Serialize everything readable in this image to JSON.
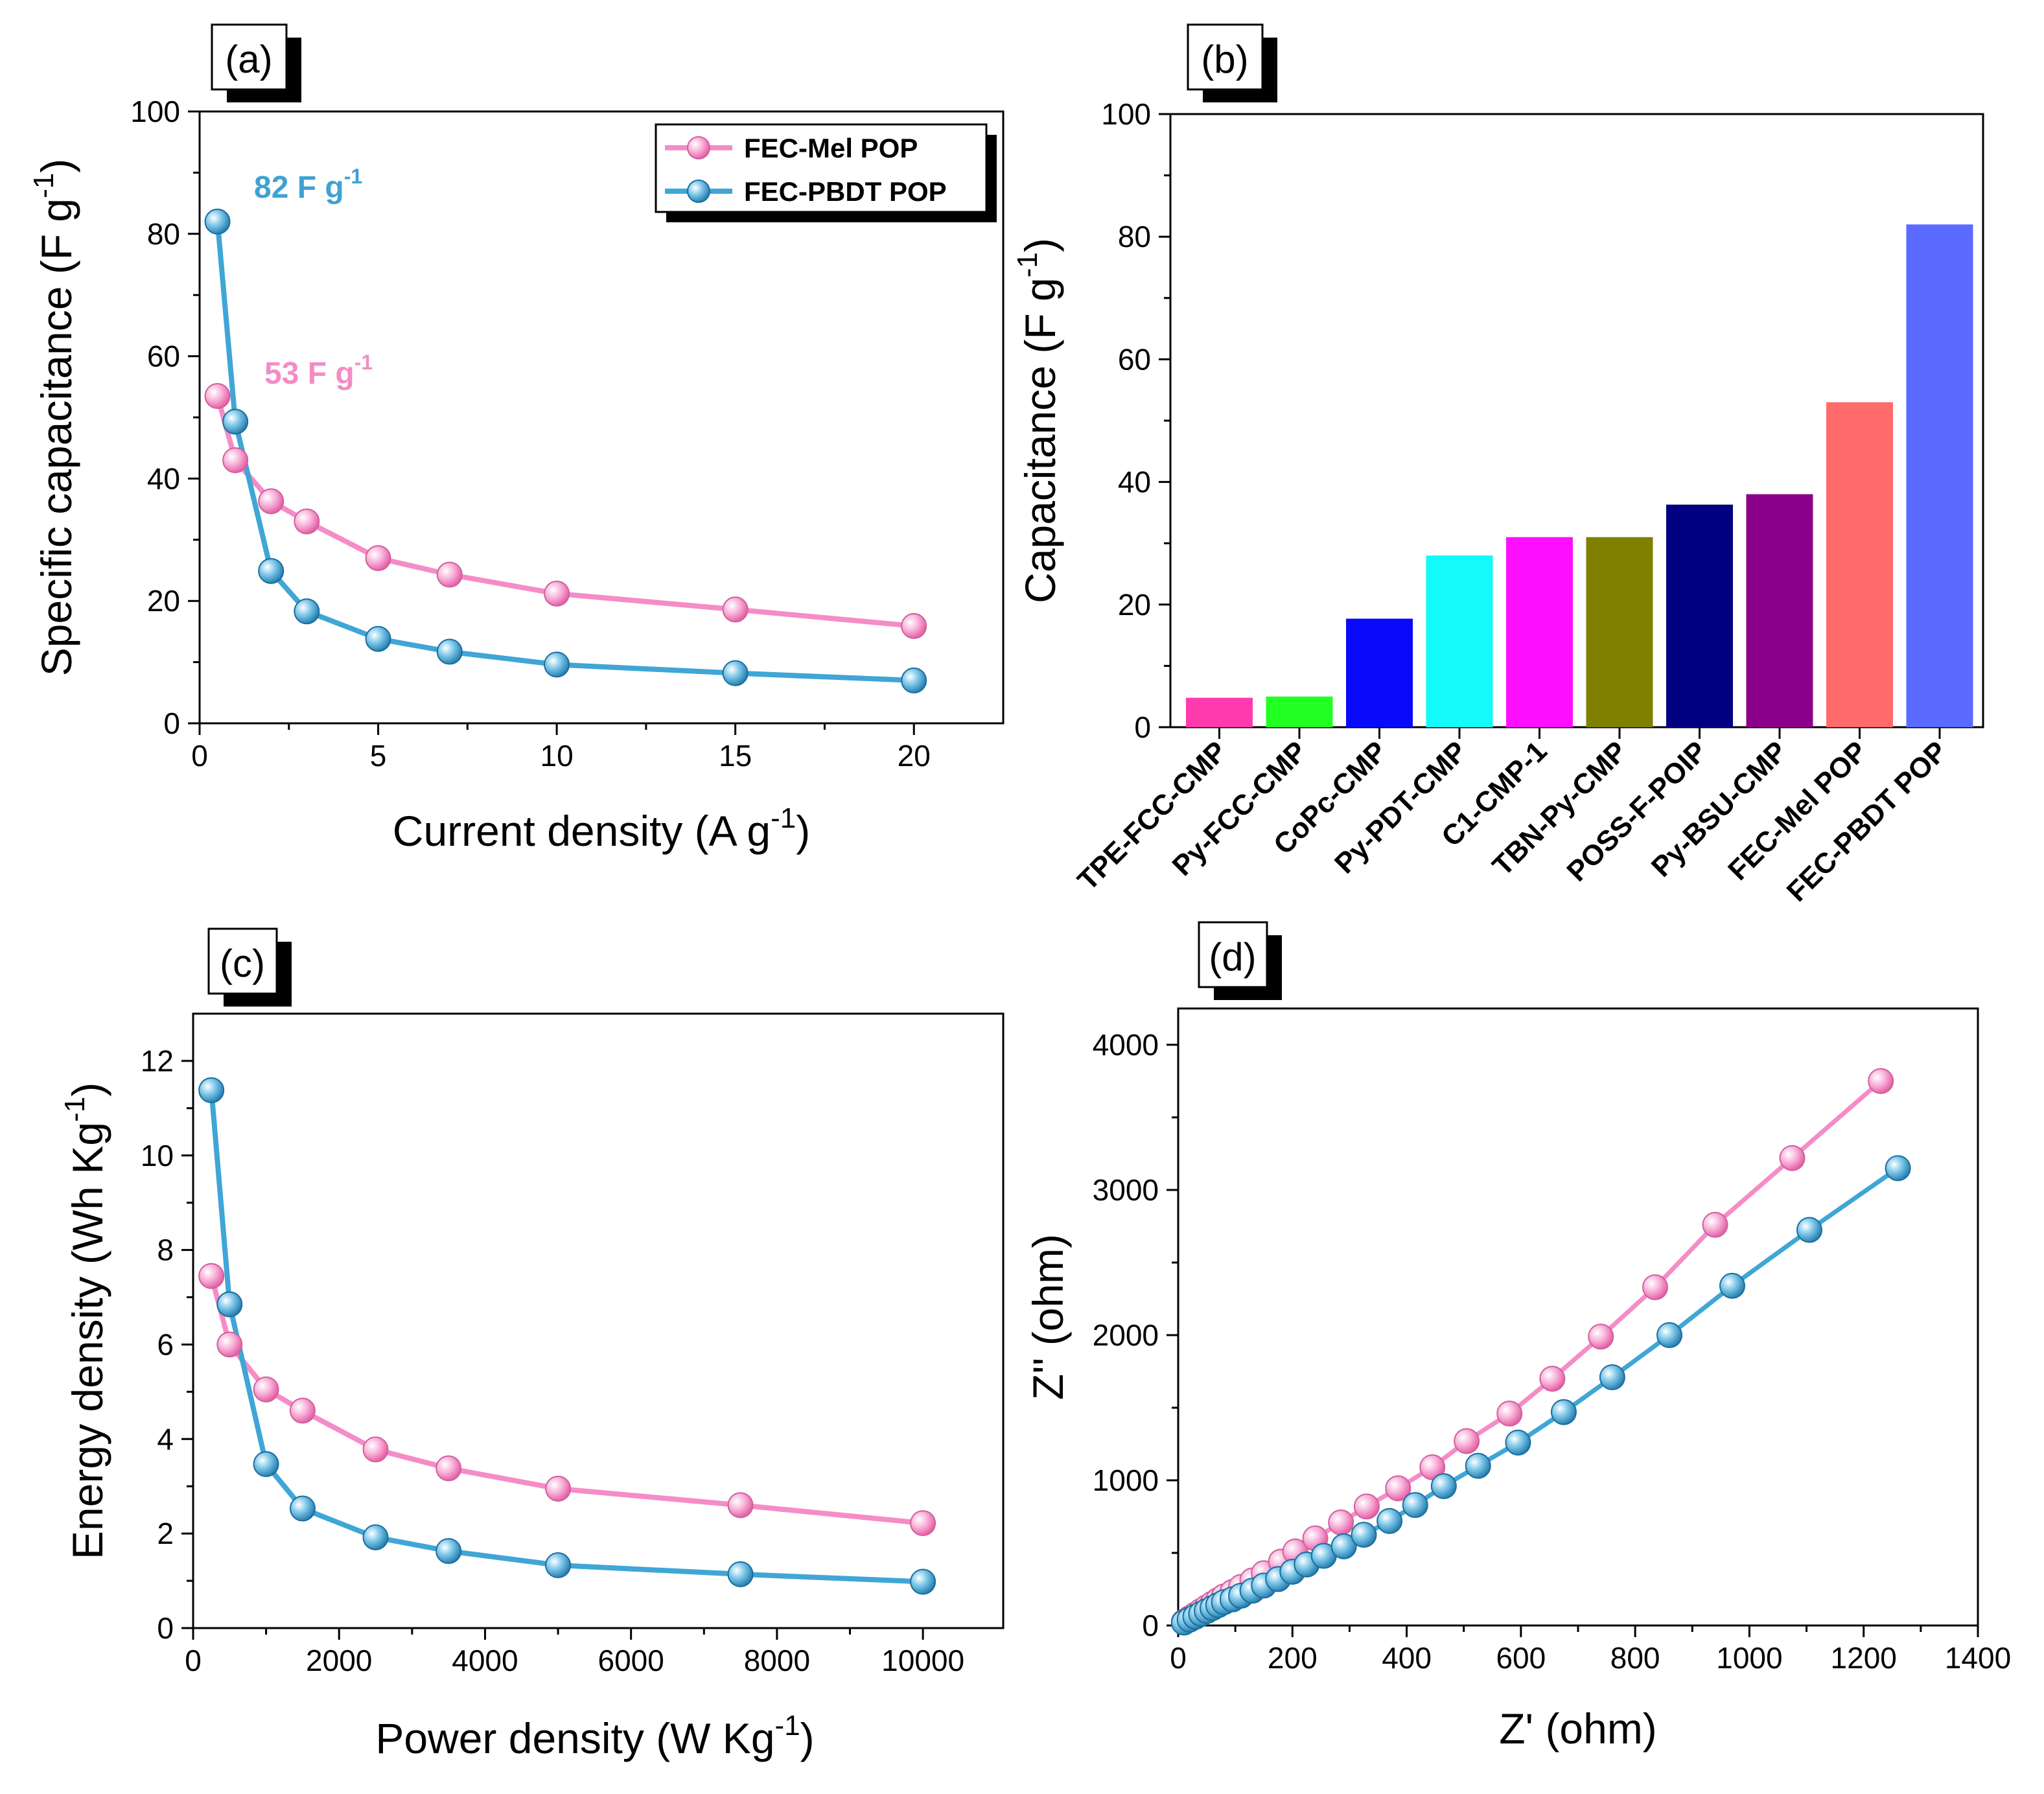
{
  "colors": {
    "pink": "#F58CC8",
    "blue": "#3FA6D6",
    "annot_pink": "#F38CC6",
    "annot_blue": "#3FA2D2"
  },
  "chart_data": [
    {
      "id": "a",
      "panel_label": "(a)",
      "type": "line",
      "xlabel_base": "Current density (A g",
      "xlabel_sup": "-1",
      "xlabel_end": ")",
      "ylabel_base": "Specific capacitance (F g",
      "ylabel_sup": "-1",
      "ylabel_end": ")",
      "xlim": [
        0,
        22.5
      ],
      "ylim": [
        0,
        100
      ],
      "xticks": [
        0,
        5,
        10,
        15,
        20
      ],
      "yticks": [
        0,
        20,
        40,
        60,
        80,
        100
      ],
      "series": [
        {
          "name": "FEC-Mel POP",
          "color": "#F58CC8",
          "x": [
            0.5,
            1,
            2,
            3,
            5,
            7,
            10,
            15,
            20
          ],
          "y": [
            53.5,
            43,
            36.3,
            33,
            27,
            24.3,
            21.2,
            18.6,
            15.9
          ]
        },
        {
          "name": "FEC-PBDT POP",
          "color": "#3FA6D6",
          "x": [
            0.5,
            1,
            2,
            3,
            5,
            7,
            10,
            15,
            20
          ],
          "y": [
            82,
            49.3,
            24.9,
            18.3,
            13.8,
            11.7,
            9.6,
            8.2,
            7
          ]
        }
      ],
      "legend": [
        "FEC-Mel POP",
        "FEC-PBDT POP"
      ],
      "annotations": [
        {
          "base": "82 F g",
          "sup": "-1",
          "color": "#3FA2D2"
        },
        {
          "base": "53 F g",
          "sup": "-1",
          "color": "#F38CC6"
        }
      ]
    },
    {
      "id": "b",
      "panel_label": "(b)",
      "type": "bar",
      "ylabel_base": "Capacitance  (F g",
      "ylabel_sup": "-1",
      "ylabel_end": ")",
      "ylim": [
        0,
        100
      ],
      "yticks": [
        0,
        20,
        40,
        60,
        80,
        100
      ],
      "categories": [
        "TPE-FCC-CMP",
        "Py-FCC-CMP",
        "CoPc-CMP",
        "Py-PDT-CMP",
        "C1-CMP-1",
        "TBN-Py-CMP",
        "POSS-F-POIP",
        "Py-BSU-CMP",
        "FEC-Mel POP",
        "FEC-PBDT POP"
      ],
      "values": [
        4.8,
        5,
        17.7,
        28,
        31,
        31,
        36.3,
        38,
        53,
        82
      ],
      "bar_colors": [
        "#FF3AAE",
        "#22FF22",
        "#0A0AFA",
        "#12FAFA",
        "#FF0FFF",
        "#808000",
        "#000080",
        "#8B0088",
        "#FF6B6B",
        "#5B6BFF"
      ]
    },
    {
      "id": "c",
      "panel_label": "(c)",
      "type": "line",
      "xlabel_base": "Power density (W Kg",
      "xlabel_sup": "-1",
      "xlabel_end": ")",
      "ylabel_base": "Energy density (Wh Kg",
      "ylabel_sup": "-1",
      "ylabel_end": ")",
      "xlim": [
        0,
        11100
      ],
      "ylim": [
        0,
        13
      ],
      "xticks": [
        0,
        2000,
        4000,
        6000,
        8000,
        10000
      ],
      "yticks": [
        0,
        2,
        4,
        6,
        8,
        10,
        12
      ],
      "series": [
        {
          "name": "FEC-Mel POP",
          "color": "#F58CC8",
          "x": [
            250,
            500,
            1000,
            1500,
            2500,
            3500,
            5000,
            7500,
            10000
          ],
          "y": [
            7.45,
            6,
            5.05,
            4.6,
            3.78,
            3.38,
            2.95,
            2.6,
            2.22
          ]
        },
        {
          "name": "FEC-PBDT POP",
          "color": "#3FA6D6",
          "x": [
            250,
            500,
            1000,
            1500,
            2500,
            3500,
            5000,
            7500,
            10000
          ],
          "y": [
            11.38,
            6.85,
            3.47,
            2.53,
            1.92,
            1.63,
            1.33,
            1.14,
            0.98
          ]
        }
      ]
    },
    {
      "id": "d",
      "panel_label": "(d)",
      "type": "scatter",
      "xlabel": "Z' (ohm)",
      "ylabel": "Z'' (ohm)",
      "xlim": [
        0,
        1400
      ],
      "ylim": [
        0,
        4250
      ],
      "xticks": [
        0,
        200,
        400,
        600,
        800,
        1000,
        1200,
        1400
      ],
      "yticks": [
        0,
        1000,
        2000,
        3000,
        4000
      ],
      "series": [
        {
          "name": "FEC-Mel POP",
          "color": "#F58CC8",
          "x": [
            10,
            20,
            30,
            40,
            50,
            60,
            70,
            80,
            95,
            110,
            130,
            150,
            180,
            205,
            240,
            285,
            330,
            385,
            445,
            505,
            580,
            655,
            740,
            835,
            940,
            1075,
            1230
          ],
          "y": [
            25,
            50,
            75,
            100,
            125,
            150,
            175,
            200,
            230,
            265,
            310,
            360,
            440,
            510,
            600,
            710,
            820,
            945,
            1090,
            1270,
            1460,
            1700,
            1990,
            2330,
            2760,
            3220,
            3750
          ]
        },
        {
          "name": "FEC-PBDT POP",
          "color": "#3FA6D6",
          "x": [
            10,
            20,
            30,
            40,
            50,
            60,
            70,
            80,
            95,
            110,
            130,
            150,
            175,
            200,
            225,
            255,
            290,
            325,
            370,
            415,
            465,
            525,
            595,
            675,
            760,
            860,
            970,
            1105,
            1260
          ],
          "y": [
            20,
            40,
            60,
            80,
            100,
            120,
            140,
            160,
            180,
            205,
            240,
            275,
            320,
            370,
            420,
            480,
            545,
            625,
            720,
            830,
            960,
            1100,
            1260,
            1470,
            1710,
            2000,
            2340,
            2725,
            3150
          ]
        }
      ]
    }
  ]
}
